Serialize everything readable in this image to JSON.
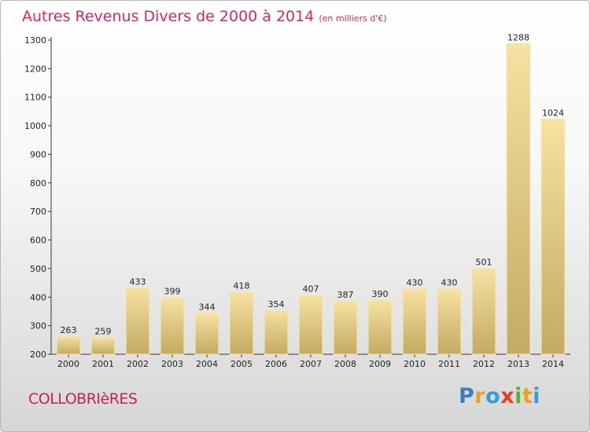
{
  "title_main": "Autres Revenus Divers de 2000 à 2014",
  "title_unit": "(en milliers d'€)",
  "commune": "COLLOBRIèRES",
  "brand": {
    "letters": [
      {
        "ch": "P",
        "color": "#3a7fc4"
      },
      {
        "ch": "r",
        "color": "#e8a020"
      },
      {
        "ch": "o",
        "color": "#2f9fd8"
      },
      {
        "ch": "x",
        "color": "#e83c2a"
      },
      {
        "ch": "i",
        "color": "#5bb037"
      },
      {
        "ch": "t",
        "color": "#e8a020"
      },
      {
        "ch": "i",
        "color": "#2f9fd8"
      }
    ]
  },
  "chart_data": {
    "type": "bar",
    "categories": [
      "2000",
      "2001",
      "2002",
      "2003",
      "2004",
      "2005",
      "2006",
      "2007",
      "2008",
      "2009",
      "2010",
      "2011",
      "2012",
      "2013",
      "2014"
    ],
    "values": [
      263,
      259,
      433,
      399,
      344,
      418,
      354,
      407,
      387,
      390,
      430,
      430,
      501,
      1288,
      1024
    ],
    "ylim": [
      200,
      1300
    ],
    "yticks": [
      200,
      300,
      400,
      500,
      600,
      700,
      800,
      900,
      1000,
      1100,
      1200,
      1300
    ],
    "bar_color": "#efd38a",
    "grid": false
  }
}
